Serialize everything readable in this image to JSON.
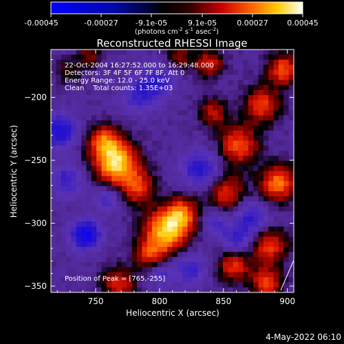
{
  "colorbar": {
    "tick_labels": [
      "-0.00045",
      "-0.00027",
      "-9.1e-05",
      "9.1e-05",
      "0.00027",
      "0.00045"
    ],
    "unit_prefix": "(photons cm",
    "unit_exp1": "-2",
    "unit_mid": " s",
    "unit_exp2": "-1",
    "unit_mid2": " asec",
    "unit_exp3": "-2",
    "unit_suffix": ")"
  },
  "header": {
    "time_range": "22-Oct-2004 16:27:52.000 to 16:29:48.000",
    "detectors": "Detectors: 3F 4F 5F 6F 7F 8F, Att 0",
    "energy": "Energy Range: 12.0 - 25.0 keV",
    "clean": "Clean    Total counts: 1.35E+03"
  },
  "peak_label": "Position of Peak = [765,-255]",
  "footer_date": "4-May-2022 06:10",
  "chart_data": {
    "type": "heatmap",
    "title": "Reconstructed RHESSI Image",
    "xlabel": "Heliocentric X (arcsec)",
    "ylabel": "Heliocentric Y (arcsec)",
    "xlim": [
      715,
      905
    ],
    "ylim": [
      -355,
      -162
    ],
    "x_ticks": [
      750,
      800,
      850,
      900
    ],
    "y_ticks": [
      -350,
      -300,
      -250,
      -200
    ],
    "colorscale": "RHESSI blue-black-red-yellow-white",
    "zlim": [
      -0.00045,
      0.00045
    ],
    "peak": [
      765,
      -255
    ],
    "blobs": [
      {
        "x": 766,
        "y": -252,
        "amp": 1.0,
        "r": 12
      },
      {
        "x": 756,
        "y": -234,
        "amp": 0.6,
        "r": 9
      },
      {
        "x": 783,
        "y": -272,
        "amp": 0.55,
        "r": 10
      },
      {
        "x": 806,
        "y": -306,
        "amp": 0.95,
        "r": 12
      },
      {
        "x": 818,
        "y": -292,
        "amp": 0.6,
        "r": 9
      },
      {
        "x": 792,
        "y": -325,
        "amp": 0.5,
        "r": 9
      },
      {
        "x": 862,
        "y": -238,
        "amp": 0.65,
        "r": 11
      },
      {
        "x": 852,
        "y": -275,
        "amp": 0.55,
        "r": 10
      },
      {
        "x": 880,
        "y": -206,
        "amp": 0.6,
        "r": 10
      },
      {
        "x": 897,
        "y": -178,
        "amp": 0.65,
        "r": 9
      },
      {
        "x": 893,
        "y": -268,
        "amp": 0.75,
        "r": 10
      },
      {
        "x": 886,
        "y": -318,
        "amp": 0.6,
        "r": 10
      },
      {
        "x": 858,
        "y": -334,
        "amp": 0.55,
        "r": 9
      },
      {
        "x": 884,
        "y": -348,
        "amp": 0.6,
        "r": 9
      },
      {
        "x": 839,
        "y": -173,
        "amp": 0.5,
        "r": 8
      },
      {
        "x": 815,
        "y": -168,
        "amp": 0.4,
        "r": 7
      },
      {
        "x": 842,
        "y": -212,
        "amp": 0.45,
        "r": 8
      },
      {
        "x": 768,
        "y": -348,
        "amp": 0.55,
        "r": 9
      },
      {
        "x": 745,
        "y": -167,
        "amp": 0.35,
        "r": 7
      },
      {
        "x": 728,
        "y": -180,
        "amp": 0.3,
        "r": 7
      },
      {
        "x": 742,
        "y": -309,
        "amp": -0.75,
        "r": 8
      },
      {
        "x": 722,
        "y": -227,
        "amp": -0.6,
        "r": 9
      },
      {
        "x": 832,
        "y": -257,
        "amp": -0.5,
        "r": 10
      },
      {
        "x": 872,
        "y": -297,
        "amp": -0.45,
        "r": 9
      },
      {
        "x": 860,
        "y": -313,
        "amp": -0.4,
        "r": 8
      },
      {
        "x": 785,
        "y": -198,
        "amp": -0.4,
        "r": 10
      },
      {
        "x": 800,
        "y": -187,
        "amp": -0.35,
        "r": 9
      },
      {
        "x": 727,
        "y": -266,
        "amp": -0.4,
        "r": 9
      },
      {
        "x": 760,
        "y": -280,
        "amp": -0.35,
        "r": 7
      },
      {
        "x": 823,
        "y": -336,
        "amp": -0.4,
        "r": 9
      },
      {
        "x": 843,
        "y": -300,
        "amp": -0.3,
        "r": 7
      },
      {
        "x": 800,
        "y": -340,
        "amp": -0.3,
        "r": 7
      }
    ]
  }
}
